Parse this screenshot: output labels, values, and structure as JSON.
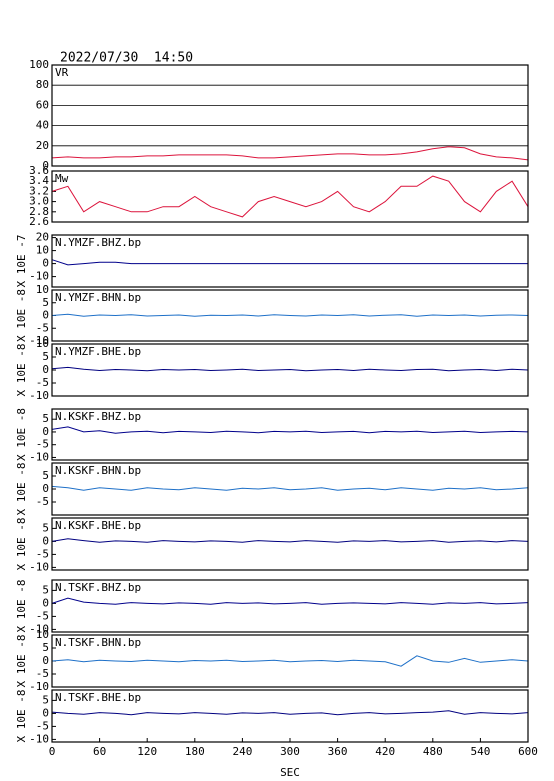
{
  "title": "2022/07/30  14:50",
  "x_axis": {
    "label": "SEC",
    "xlim": [
      0,
      600
    ],
    "xticks": [
      0,
      60,
      120,
      180,
      240,
      300,
      360,
      420,
      480,
      540,
      600
    ]
  },
  "x": [
    0,
    20,
    40,
    60,
    80,
    100,
    120,
    140,
    160,
    180,
    200,
    220,
    240,
    260,
    280,
    300,
    320,
    340,
    360,
    380,
    400,
    420,
    440,
    460,
    480,
    500,
    520,
    540,
    560,
    580,
    600
  ],
  "chart_data": [
    {
      "type": "line",
      "label": "VR",
      "color": "#dc143c",
      "ylim": [
        0,
        100
      ],
      "yticks": [
        0,
        20,
        40,
        60,
        80,
        100
      ],
      "grid": true,
      "values": [
        8,
        9,
        8,
        8,
        9,
        9,
        10,
        10,
        11,
        11,
        11,
        11,
        10,
        8,
        8,
        9,
        10,
        11,
        12,
        12,
        11,
        11,
        12,
        14,
        17,
        19,
        18,
        12,
        9,
        8,
        6
      ]
    },
    {
      "type": "line",
      "label": "Mw",
      "color": "#dc143c",
      "ylim": [
        2.6,
        3.6
      ],
      "grid": false,
      "yticks": [
        2.6,
        2.8,
        {
          "value": 3,
          "label": "3.0"
        },
        3.2,
        3.4,
        3.6
      ],
      "values": [
        3.2,
        3.3,
        2.8,
        3.0,
        2.9,
        2.8,
        2.8,
        2.9,
        2.9,
        3.1,
        2.9,
        2.8,
        2.7,
        3.0,
        3.1,
        3.0,
        2.9,
        3.0,
        3.2,
        2.9,
        2.8,
        3.0,
        3.3,
        3.3,
        3.5,
        3.4,
        3.0,
        2.8,
        3.2,
        3.4,
        2.9
      ]
    },
    {
      "type": "line",
      "label": "N.YMZF.BHZ.bp",
      "y_label": "X 10E -7",
      "color": "#00008b",
      "ylim": [
        -18,
        22
      ],
      "yticks": [
        -10,
        0,
        10,
        20
      ],
      "grid": false,
      "values": [
        3,
        -1,
        0,
        1,
        1,
        0,
        0,
        0,
        0,
        0,
        0,
        0,
        0,
        0,
        0,
        0,
        0,
        0,
        0,
        0,
        0,
        0,
        0,
        0,
        0,
        0,
        0,
        0,
        0,
        0,
        0
      ]
    },
    {
      "type": "line",
      "label": "N.YMZF.BHN.bp",
      "y_label": "X 10E -8",
      "color": "#1e70c8",
      "ylim": [
        -10,
        10
      ],
      "yticks": [
        -10,
        -5,
        0,
        5,
        10
      ],
      "grid": false,
      "values": [
        0,
        0.5,
        -0.3,
        0.2,
        0,
        0.3,
        -0.2,
        0,
        0.2,
        -0.3,
        0.1,
        0,
        0.2,
        -0.2,
        0.3,
        0,
        -0.2,
        0.2,
        0,
        0.3,
        -0.2,
        0.1,
        0.3,
        -0.3,
        0.2,
        0,
        0.2,
        -0.2,
        0.1,
        0.2,
        0
      ]
    },
    {
      "type": "line",
      "label": "N.YMZF.BHE.bp",
      "y_label": "X 10E -8",
      "color": "#000080",
      "ylim": [
        -10,
        10
      ],
      "yticks": [
        -10,
        -5,
        0,
        5,
        10
      ],
      "grid": false,
      "values": [
        0.5,
        1,
        0.3,
        -0.2,
        0.2,
        0,
        -0.3,
        0.2,
        0,
        0.2,
        -0.2,
        0,
        0.3,
        -0.2,
        0,
        0.2,
        -0.3,
        0,
        0.2,
        -0.2,
        0.3,
        0,
        -0.2,
        0.2,
        0.3,
        -0.3,
        0,
        0.2,
        -0.2,
        0.3,
        0
      ]
    },
    {
      "type": "line",
      "label": "N.KSKF.BHZ.bp",
      "y_label": "X 10E -8",
      "color": "#00008b",
      "ylim": [
        -11,
        9
      ],
      "yticks": [
        -10,
        -5,
        0,
        5
      ],
      "grid": false,
      "values": [
        1,
        2,
        0,
        0.5,
        -0.5,
        0,
        0.3,
        -0.3,
        0.2,
        0,
        -0.2,
        0.3,
        0,
        -0.3,
        0.2,
        0,
        0.3,
        -0.2,
        0,
        0.2,
        -0.3,
        0.2,
        0,
        0.3,
        -0.2,
        0,
        0.3,
        -0.2,
        0,
        0.2,
        0
      ]
    },
    {
      "type": "line",
      "label": "N.KSKF.BHN.bp",
      "y_label": "X 10E -8",
      "color": "#1e70c8",
      "ylim": [
        -10,
        10
      ],
      "yticks": [
        -5,
        0,
        5
      ],
      "grid": false,
      "values": [
        1,
        0.5,
        -0.5,
        0.5,
        0,
        -0.5,
        0.5,
        0,
        -0.3,
        0.5,
        0,
        -0.5,
        0.3,
        0,
        0.5,
        -0.3,
        0,
        0.5,
        -0.5,
        0,
        0.3,
        -0.3,
        0.5,
        0,
        -0.5,
        0.3,
        0,
        0.5,
        -0.3,
        0,
        0.5
      ]
    },
    {
      "type": "line",
      "label": "N.KSKF.BHE.bp",
      "y_label": "X 10E -8",
      "color": "#000080",
      "ylim": [
        -11,
        9
      ],
      "yticks": [
        -10,
        -5,
        0,
        5
      ],
      "grid": false,
      "values": [
        0,
        1,
        0.3,
        -0.3,
        0.2,
        0,
        -0.3,
        0.3,
        0,
        -0.2,
        0.2,
        0,
        -0.3,
        0.3,
        0,
        -0.2,
        0.3,
        0,
        -0.3,
        0.2,
        0,
        0.3,
        -0.2,
        0,
        0.3,
        -0.3,
        0,
        0.2,
        -0.2,
        0.3,
        0
      ]
    },
    {
      "type": "line",
      "label": "N.TSKF.BHZ.bp",
      "y_label": "X 10E -8",
      "color": "#00008b",
      "ylim": [
        -11,
        9
      ],
      "yticks": [
        -10,
        -5,
        0,
        5
      ],
      "grid": false,
      "values": [
        0,
        2,
        0.5,
        0,
        -0.3,
        0.3,
        0,
        -0.2,
        0.2,
        0,
        -0.3,
        0.3,
        0,
        0.2,
        -0.2,
        0,
        0.3,
        -0.3,
        0,
        0.2,
        0,
        -0.2,
        0.3,
        0,
        -0.3,
        0.2,
        0,
        0.3,
        -0.2,
        0,
        0.3
      ]
    },
    {
      "type": "line",
      "label": "N.TSKF.BHN.bp",
      "y_label": "X 10E -8",
      "color": "#1e70c8",
      "ylim": [
        -10,
        10
      ],
      "yticks": [
        -10,
        -5,
        0,
        5,
        10
      ],
      "grid": false,
      "values": [
        0,
        0.5,
        -0.3,
        0.3,
        0,
        -0.2,
        0.3,
        0,
        -0.3,
        0.2,
        0,
        0.3,
        -0.2,
        0,
        0.3,
        -0.3,
        0,
        0.2,
        -0.2,
        0.3,
        0,
        -0.3,
        -2,
        2,
        0,
        -0.5,
        1,
        -0.5,
        0,
        0.5,
        0
      ]
    },
    {
      "type": "line",
      "label": "N.TSKF.BHE.bp",
      "y_label": "X 10E -8",
      "color": "#000080",
      "ylim": [
        -11,
        9
      ],
      "yticks": [
        -10,
        -5,
        0,
        5
      ],
      "grid": false,
      "values": [
        0.5,
        0,
        -0.3,
        0.3,
        0,
        -0.5,
        0.3,
        0,
        -0.2,
        0.3,
        0,
        -0.3,
        0.2,
        0,
        0.3,
        -0.3,
        0,
        0.2,
        -0.5,
        0,
        0.3,
        -0.2,
        0,
        0.3,
        0.5,
        1,
        -0.3,
        0.3,
        0,
        -0.2,
        0.3
      ]
    }
  ]
}
